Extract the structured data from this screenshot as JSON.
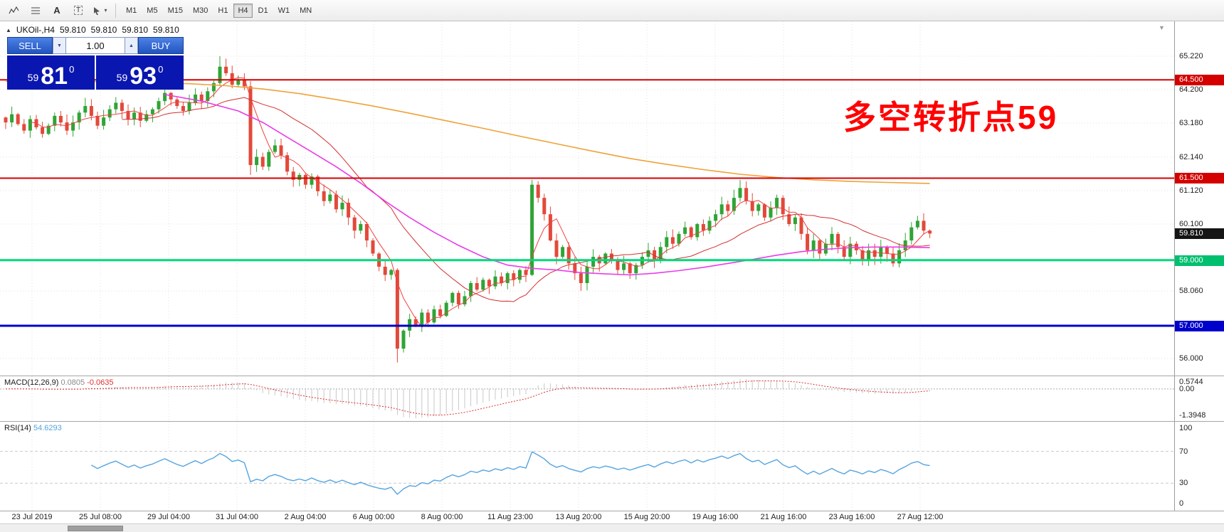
{
  "toolbar": {
    "tools": [
      "crosshair-indicator-icon",
      "fib-lines-icon",
      "text-icon",
      "text-label-icon",
      "arrow-shapes-icon"
    ],
    "timeframes": [
      "M1",
      "M5",
      "M15",
      "M30",
      "H1",
      "H4",
      "D1",
      "W1",
      "MN"
    ],
    "active_timeframe": "H4"
  },
  "chart_header": {
    "symbol": "UKOil-,H4",
    "o": "59.810",
    "h": "59.810",
    "l": "59.810",
    "c": "59.810"
  },
  "trade_panel": {
    "sell_label": "SELL",
    "buy_label": "BUY",
    "volume": "1.00",
    "sell_price_small": "59",
    "sell_price_big": "81",
    "sell_price_sup": "0",
    "buy_price_small": "59",
    "buy_price_big": "93",
    "buy_price_sup": "0"
  },
  "annotation": {
    "text": "多空转折点59",
    "color": "#ff0000"
  },
  "price_axis": [
    {
      "text": "65.220",
      "price": 65.22,
      "style": "plain"
    },
    {
      "text": "64.500",
      "price": 64.5,
      "style": "red"
    },
    {
      "text": "64.200",
      "price": 64.2,
      "style": "plain"
    },
    {
      "text": "63.180",
      "price": 63.18,
      "style": "plain"
    },
    {
      "text": "62.140",
      "price": 62.14,
      "style": "plain"
    },
    {
      "text": "61.500",
      "price": 61.5,
      "style": "red"
    },
    {
      "text": "61.120",
      "price": 61.12,
      "style": "plain"
    },
    {
      "text": "60.100",
      "price": 60.1,
      "style": "plain"
    },
    {
      "text": "59.810",
      "price": 59.81,
      "style": "black"
    },
    {
      "text": "59.000",
      "price": 59.0,
      "style": "green"
    },
    {
      "text": "58.060",
      "price": 58.06,
      "style": "plain"
    },
    {
      "text": "57.000",
      "price": 57.0,
      "style": "blue"
    },
    {
      "text": "56.000",
      "price": 56.0,
      "style": "plain"
    }
  ],
  "macd": {
    "name": "MACD(12,26,9)",
    "value_main": "0.0805",
    "value_signal": "-0.0635",
    "scale_top": "0.5744",
    "scale_zero": "0.00",
    "scale_bottom": "-1.3948"
  },
  "rsi": {
    "name": "RSI(14)",
    "value": "54.6293",
    "scale_top": "100",
    "level_top": "70",
    "level_bottom": "30",
    "scale_bottom": "0"
  },
  "time_axis": [
    "23 Jul 2019",
    "25 Jul 08:00",
    "29 Jul 04:00",
    "31 Jul 04:00",
    "2 Aug 04:00",
    "6 Aug 00:00",
    "8 Aug 00:00",
    "11 Aug 23:00",
    "13 Aug 20:00",
    "15 Aug 20:00",
    "19 Aug 16:00",
    "21 Aug 16:00",
    "23 Aug 16:00",
    "27 Aug 12:00"
  ],
  "chart_data": {
    "type": "candlestick",
    "symbol": "UKOil-",
    "timeframe": "H4",
    "current_price": 59.81,
    "price_axis_range": [
      56.0,
      65.22
    ],
    "first_open": 63.35,
    "closes": [
      63.2,
      63.45,
      63.15,
      62.95,
      63.3,
      63.05,
      62.85,
      63.1,
      63.4,
      63.2,
      62.95,
      63.2,
      63.5,
      63.7,
      63.4,
      63.1,
      63.35,
      63.6,
      63.8,
      63.55,
      63.3,
      63.5,
      63.25,
      63.45,
      63.6,
      63.85,
      64.1,
      63.9,
      63.7,
      63.55,
      63.8,
      64.05,
      63.85,
      64.15,
      64.4,
      64.9,
      64.7,
      64.35,
      64.5,
      64.3,
      61.9,
      62.15,
      61.85,
      62.3,
      62.5,
      62.2,
      61.7,
      61.45,
      61.6,
      61.3,
      61.55,
      61.1,
      60.8,
      61.0,
      60.55,
      60.75,
      60.3,
      59.9,
      60.1,
      59.6,
      59.2,
      58.8,
      58.55,
      58.7,
      56.3,
      56.85,
      57.2,
      57.0,
      57.4,
      57.1,
      57.5,
      57.3,
      57.7,
      58.0,
      57.65,
      57.9,
      58.3,
      58.1,
      58.4,
      58.2,
      58.5,
      58.3,
      58.6,
      58.4,
      58.7,
      58.55,
      61.3,
      60.9,
      60.4,
      59.6,
      59.1,
      59.4,
      58.9,
      58.6,
      58.3,
      58.8,
      59.1,
      58.9,
      59.2,
      59.0,
      58.7,
      58.9,
      58.6,
      58.85,
      59.1,
      59.3,
      59.0,
      59.4,
      59.7,
      59.5,
      59.8,
      60.0,
      59.7,
      60.1,
      59.9,
      60.2,
      60.4,
      60.7,
      60.5,
      60.9,
      61.2,
      60.8,
      60.5,
      60.7,
      60.3,
      60.6,
      60.9,
      60.4,
      60.1,
      60.3,
      59.8,
      59.3,
      59.6,
      59.2,
      59.5,
      59.8,
      59.4,
      59.1,
      59.5,
      59.3,
      59.0,
      59.3,
      59.1,
      59.4,
      59.2,
      58.9,
      59.3,
      59.6,
      60.0,
      60.2,
      59.9,
      59.81
    ],
    "wick_overrides": {
      "35": {
        "high": 65.22
      },
      "40": {
        "low": 61.6
      },
      "64": {
        "low": 55.88
      },
      "86": {
        "high": 61.45
      },
      "120": {
        "high": 61.45
      },
      "149": {
        "high": 60.35
      }
    },
    "hlines": [
      {
        "price": 64.5,
        "color": "#d40000",
        "width": 2
      },
      {
        "price": 61.5,
        "color": "#d40000",
        "width": 2
      },
      {
        "price": 59.0,
        "color": "#00d97c",
        "width": 3
      },
      {
        "price": 57.0,
        "color": "#0202cc",
        "width": 3
      }
    ],
    "moving_averages": {
      "fast_sma": 5,
      "mid_sma": 20,
      "magenta_path": [
        [
          26,
          64.05
        ],
        [
          32,
          63.85
        ],
        [
          38,
          63.55
        ],
        [
          42,
          63.2
        ],
        [
          46,
          62.75
        ],
        [
          50,
          62.3
        ],
        [
          54,
          61.85
        ],
        [
          58,
          61.35
        ],
        [
          62,
          60.8
        ],
        [
          66,
          60.3
        ],
        [
          70,
          59.85
        ],
        [
          74,
          59.45
        ],
        [
          78,
          59.1
        ],
        [
          82,
          58.85
        ],
        [
          86,
          58.75
        ],
        [
          90,
          58.7
        ],
        [
          94,
          58.62
        ],
        [
          98,
          58.58
        ],
        [
          102,
          58.55
        ],
        [
          106,
          58.6
        ],
        [
          110,
          58.68
        ],
        [
          114,
          58.78
        ],
        [
          118,
          58.9
        ],
        [
          122,
          59.02
        ],
        [
          126,
          59.15
        ],
        [
          130,
          59.26
        ],
        [
          134,
          59.33
        ],
        [
          138,
          59.38
        ],
        [
          142,
          59.4
        ],
        [
          146,
          59.4
        ],
        [
          151,
          59.38
        ]
      ],
      "orange_path": [
        [
          0,
          64.45
        ],
        [
          12,
          64.45
        ],
        [
          22,
          64.42
        ],
        [
          30,
          64.38
        ],
        [
          36,
          64.32
        ],
        [
          42,
          64.22
        ],
        [
          48,
          64.08
        ],
        [
          54,
          63.9
        ],
        [
          60,
          63.7
        ],
        [
          66,
          63.48
        ],
        [
          72,
          63.25
        ],
        [
          78,
          63.02
        ],
        [
          84,
          62.78
        ],
        [
          90,
          62.55
        ],
        [
          96,
          62.32
        ],
        [
          102,
          62.1
        ],
        [
          108,
          61.92
        ],
        [
          114,
          61.76
        ],
        [
          120,
          61.62
        ],
        [
          126,
          61.52
        ],
        [
          132,
          61.45
        ],
        [
          138,
          61.4
        ],
        [
          144,
          61.37
        ],
        [
          151,
          61.34
        ]
      ]
    },
    "macd_params": [
      12,
      26,
      9
    ],
    "rsi_period": 14,
    "colors": {
      "up": "#2fa436",
      "down": "#e2493a",
      "ma_fast": "#f04040",
      "ma_mid": "#d32f2f",
      "ma_magenta": "#e93ce9",
      "ma_orange": "#efa239",
      "macd_bar": "#c8c8c8",
      "macd_signal": "#e03030",
      "rsi_line": "#55a4e0",
      "grid": "#e0e0e0"
    }
  }
}
